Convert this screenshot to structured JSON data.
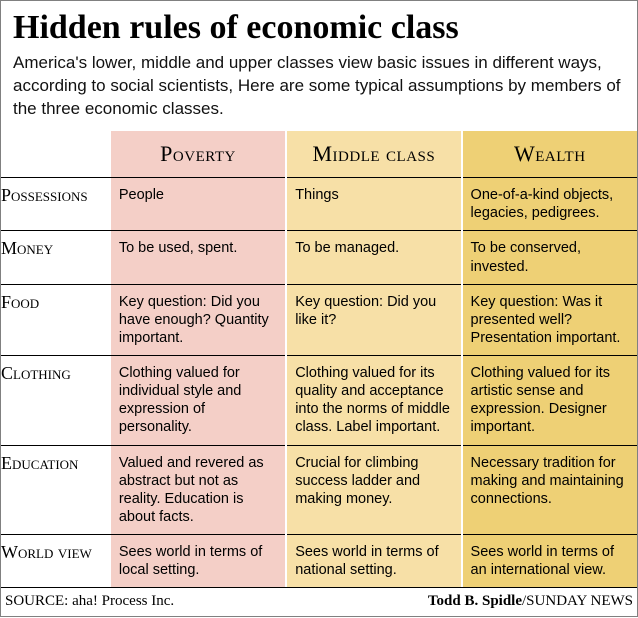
{
  "title": "Hidden rules of economic class",
  "subtitle": "America's lower, middle and upper classes view basic issues in different ways, according to social scientists, Here are some typical assumptions by members of the three economic classes.",
  "columns": [
    {
      "label": "Poverty",
      "bg": "#f4cfc7"
    },
    {
      "label": "Middle class",
      "bg": "#f7e0a7"
    },
    {
      "label": "Wealth",
      "bg": "#eed075"
    }
  ],
  "rows": [
    {
      "label": "Possessions",
      "cells": [
        "People",
        "Things",
        "One-of-a-kind objects, legacies, pedigrees."
      ]
    },
    {
      "label": "Money",
      "cells": [
        "To be used, spent.",
        "To be managed.",
        "To be conserved, invested."
      ]
    },
    {
      "label": "Food",
      "cells": [
        "Key question: Did you have enough? Quantity important.",
        "Key question: Did you like it?",
        "Key question: Was it presented well? Presentation important."
      ]
    },
    {
      "label": "Clothing",
      "cells": [
        "Clothing valued for individual style and expression of personality.",
        "Clothing valued for its quality and acceptance into the norms of middle class. Label important.",
        "Clothing valued for its artistic sense and expression. Designer important."
      ]
    },
    {
      "label": "Education",
      "cells": [
        "Valued and revered as abstract but not as reality. Education is about facts.",
        "Crucial for climbing success ladder and making money.",
        "Necessary tradition for making and maintaining connections."
      ]
    },
    {
      "label": "World view",
      "cells": [
        "Sees world in terms of local setting.",
        "Sees world in terms of national setting.",
        "Sees world in terms of an international view."
      ]
    }
  ],
  "source_label": "SOURCE:",
  "source_value": "aha! Process Inc.",
  "credit_name": "Todd B. Spidle",
  "credit_pub": "/SUNDAY NEWS"
}
